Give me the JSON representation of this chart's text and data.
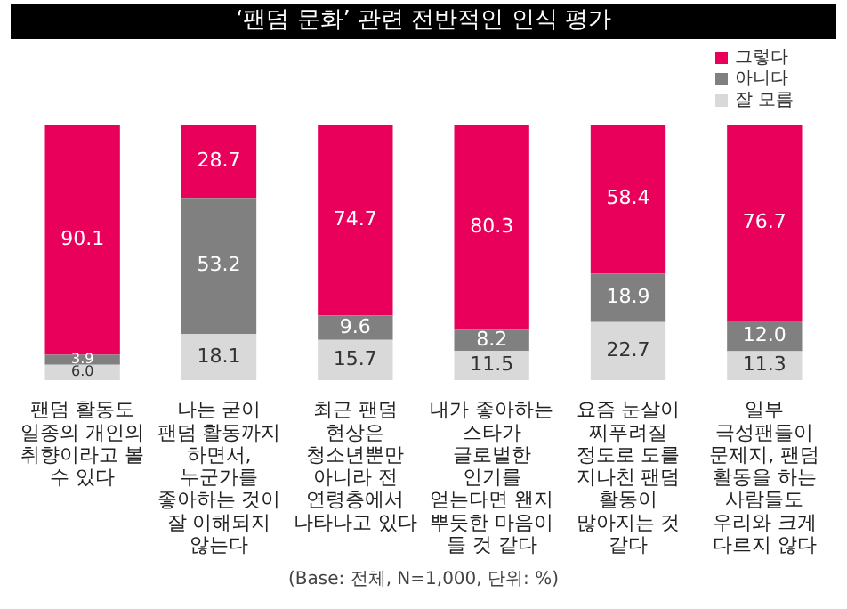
{
  "chart_data": {
    "type": "bar",
    "stacked": true,
    "title": "‘팬덤 문화’ 관련 전반적인 인식 평가",
    "categories": [
      "팬덤 활동도 일종의 개인의 취향이라고 볼 수 있다",
      "나는 굳이 팬덤 활동까지 하면서, 누군가를 좋아하는 것이 잘 이해되지 않는다",
      "최근 팬덤 현상은 청소년뿐만 아니라 전 연령층에서 나타나고 있다",
      "내가 좋아하는 스타가 글로벌한 인기를 얻는다면 왠지 뿌듯한 마음이 들 것 같다",
      "요즘 눈살이 찌푸려질 정도로 도를 지나친 팬덤 활동이 많아지는 것 같다",
      "일부 극성팬들이 문제지, 팬덤 활동을 하는 사람들도 우리와 크게 다르지 않다"
    ],
    "series": [
      {
        "name": "잘 모름",
        "color": "#d9d9d9",
        "values": [
          6.0,
          18.1,
          15.7,
          11.5,
          22.7,
          11.3
        ],
        "value_labels": [
          "6.0",
          "18.1",
          "15.7",
          "11.5",
          "22.7",
          "11.3"
        ]
      },
      {
        "name": "아니다",
        "color": "#808080",
        "values": [
          3.9,
          53.2,
          9.6,
          8.2,
          18.9,
          12.0
        ],
        "value_labels": [
          "3.9",
          "53.2",
          "9.6",
          "8.2",
          "18.9",
          "12.0"
        ]
      },
      {
        "name": "그렇다",
        "color": "#e8005a",
        "values": [
          90.1,
          28.7,
          74.7,
          80.3,
          58.4,
          76.7
        ],
        "value_labels": [
          "90.1",
          "28.7",
          "74.7",
          "80.3",
          "58.4",
          "76.7"
        ]
      }
    ],
    "ylim": [
      0,
      100
    ],
    "tick_labels": "x",
    "legend": "top right",
    "grid": false,
    "annotations": [
      "(Base: 전체, N=1,000, 단위: %)"
    ]
  }
}
